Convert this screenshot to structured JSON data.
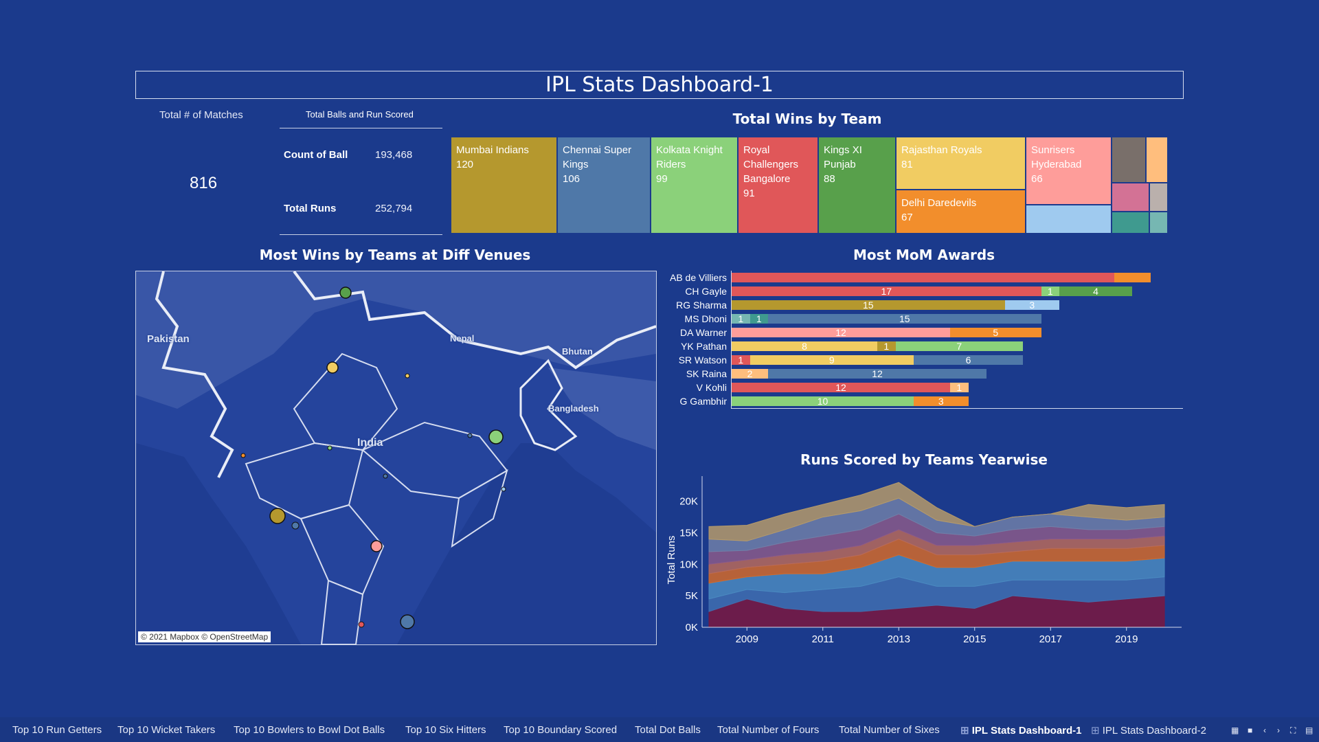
{
  "dashboard_title": "IPL Stats Dashboard-1",
  "kpi": {
    "matches_label": "Total # of Matches",
    "matches_value": "816"
  },
  "balls_runs": {
    "title": "Total Balls and Run Scored",
    "count_label": "Count of Ball",
    "count_value": "193,468",
    "runs_label": "Total Runs",
    "runs_value": "252,794"
  },
  "treemap": {
    "title": "Total Wins by Team",
    "tiles": [
      {
        "team": "Mumbai Indians",
        "wins": "120",
        "color": "#b5982e"
      },
      {
        "team": "Chennai Super Kings",
        "wins": "106",
        "color": "#4f78a8"
      },
      {
        "team": "Kolkata Knight Riders",
        "wins": "99",
        "color": "#8bd17a"
      },
      {
        "team": "Royal Challengers Bangalore",
        "wins": "91",
        "color": "#e05759"
      },
      {
        "team": "Kings XI Punjab",
        "wins": "88",
        "color": "#58a04b"
      },
      {
        "team": "Rajasthan Royals",
        "wins": "81",
        "color": "#f1cc62"
      },
      {
        "team": "Delhi Daredevils",
        "wins": "67",
        "color": "#f28e2c"
      },
      {
        "team": "Sunrisers Hyderabad",
        "wins": "66",
        "color": "#fe9d9a"
      }
    ]
  },
  "map": {
    "title": "Most Wins by Teams at Diff Venues",
    "labels": [
      "Pakistan",
      "Nepal",
      "Bhutan",
      "Bangladesh",
      "India"
    ],
    "attribution": "© 2021 Mapbox © OpenStreetMap"
  },
  "mom": {
    "title": "Most MoM Awards",
    "players": [
      {
        "name": "AB de Villiers",
        "segments": [
          {
            "v": 21,
            "label": "",
            "color": "#e05759"
          },
          {
            "v": 2,
            "label": "",
            "color": "#f28e2c"
          }
        ]
      },
      {
        "name": "CH Gayle",
        "segments": [
          {
            "v": 17,
            "label": "17",
            "color": "#e05759"
          },
          {
            "v": 1,
            "label": "1",
            "color": "#8bd17a"
          },
          {
            "v": 4,
            "label": "4",
            "color": "#58a04b"
          }
        ]
      },
      {
        "name": "RG Sharma",
        "segments": [
          {
            "v": 15,
            "label": "15",
            "color": "#b5982e"
          },
          {
            "v": 3,
            "label": "3",
            "color": "#9fcaef"
          }
        ]
      },
      {
        "name": "MS Dhoni",
        "segments": [
          {
            "v": 1,
            "label": "1",
            "color": "#76b7b2"
          },
          {
            "v": 1,
            "label": "1",
            "color": "#3f9a8f"
          },
          {
            "v": 15,
            "label": "15",
            "color": "#4f78a8"
          }
        ]
      },
      {
        "name": "DA Warner",
        "segments": [
          {
            "v": 12,
            "label": "12",
            "color": "#fe9d9a"
          },
          {
            "v": 5,
            "label": "5",
            "color": "#f28e2c"
          }
        ]
      },
      {
        "name": "YK Pathan",
        "segments": [
          {
            "v": 8,
            "label": "8",
            "color": "#f1cc62"
          },
          {
            "v": 1,
            "label": "1",
            "color": "#b5982e"
          },
          {
            "v": 7,
            "label": "7",
            "color": "#8bd17a"
          }
        ]
      },
      {
        "name": "SR Watson",
        "segments": [
          {
            "v": 1,
            "label": "1",
            "color": "#e05759"
          },
          {
            "v": 9,
            "label": "9",
            "color": "#f1cc62"
          },
          {
            "v": 6,
            "label": "6",
            "color": "#4f78a8"
          }
        ]
      },
      {
        "name": "SK Raina",
        "segments": [
          {
            "v": 2,
            "label": "2",
            "color": "#ffbe7d"
          },
          {
            "v": 12,
            "label": "12",
            "color": "#4f78a8"
          }
        ]
      },
      {
        "name": "V Kohli",
        "segments": [
          {
            "v": 12,
            "label": "12",
            "color": "#e05759"
          },
          {
            "v": 1,
            "label": "1",
            "color": "#ffbe7d"
          }
        ]
      },
      {
        "name": "G Gambhir",
        "segments": [
          {
            "v": 10,
            "label": "10",
            "color": "#8bd17a"
          },
          {
            "v": 3,
            "label": "3",
            "color": "#f28e2c"
          }
        ]
      }
    ]
  },
  "chart_data": {
    "type": "area",
    "title": "Runs Scored by Teams Yearwise",
    "ylabel": "Total Runs",
    "xlabel": "",
    "x_ticks": [
      "2009",
      "2011",
      "2013",
      "2015",
      "2017",
      "2019"
    ],
    "y_ticks": [
      "0K",
      "5K",
      "10K",
      "15K",
      "20K"
    ],
    "ylim": [
      0,
      24000
    ],
    "xlim": [
      2008,
      2020
    ],
    "years": [
      2008,
      2009,
      2010,
      2011,
      2012,
      2013,
      2014,
      2015,
      2016,
      2017,
      2018,
      2019,
      2020
    ],
    "series": [
      {
        "values": [
          2500,
          4500,
          3000,
          2500,
          2500,
          3000,
          3500,
          3000,
          5000,
          4500,
          4000,
          4500,
          5000
        ],
        "color": "#7a1840"
      },
      {
        "values": [
          2000,
          1500,
          2500,
          3500,
          4000,
          5000,
          3000,
          3500,
          2500,
          3000,
          3500,
          3000,
          3000
        ],
        "color": "#3f6fb0"
      },
      {
        "values": [
          2500,
          2000,
          3000,
          2500,
          3000,
          3500,
          3000,
          3000,
          3000,
          3000,
          3000,
          3000,
          3000
        ],
        "color": "#4a89c0"
      },
      {
        "values": [
          1500,
          1500,
          1500,
          2000,
          2000,
          2500,
          2000,
          2000,
          1500,
          2000,
          2000,
          2000,
          2000
        ],
        "color": "#d26a2a"
      },
      {
        "values": [
          1500,
          1200,
          1500,
          1500,
          1500,
          1500,
          1500,
          1500,
          1500,
          1500,
          1500,
          1500,
          1500
        ],
        "color": "#b76a5a"
      },
      {
        "values": [
          2000,
          1500,
          2000,
          2500,
          2500,
          2500,
          2000,
          1500,
          2000,
          2000,
          1500,
          1500,
          1500
        ],
        "color": "#8a5a8a"
      },
      {
        "values": [
          2000,
          1500,
          2000,
          3000,
          3000,
          2500,
          2000,
          1500,
          2000,
          2000,
          2000,
          1500,
          1500
        ],
        "color": "#6f7fa8"
      },
      {
        "values": [
          2000,
          2500,
          2500,
          2000,
          2500,
          2500,
          2000,
          0,
          0,
          0,
          2000,
          2000,
          2000
        ],
        "color": "#b59a6a"
      }
    ]
  },
  "tabs": [
    {
      "label": "Top 10 Run Getters",
      "active": false
    },
    {
      "label": "Top 10 Wicket Takers",
      "active": false
    },
    {
      "label": "Top 10 Bowlers to Bowl Dot Balls",
      "active": false
    },
    {
      "label": "Top 10 Six Hitters",
      "active": false
    },
    {
      "label": "Top 10 Boundary Scored",
      "active": false
    },
    {
      "label": "Total Dot Balls",
      "active": false
    },
    {
      "label": "Total Number of Fours",
      "active": false
    },
    {
      "label": "Total Number of Sixes",
      "active": false
    },
    {
      "label": "IPL Stats Dashboard-1",
      "active": true
    },
    {
      "label": "IPL Stats Dashboard-2",
      "active": false
    }
  ],
  "icons": [
    "grid-icon",
    "fullscreen-icon",
    "nav-prev-icon",
    "nav-next-icon",
    "expand-icon",
    "sheet-icon"
  ]
}
